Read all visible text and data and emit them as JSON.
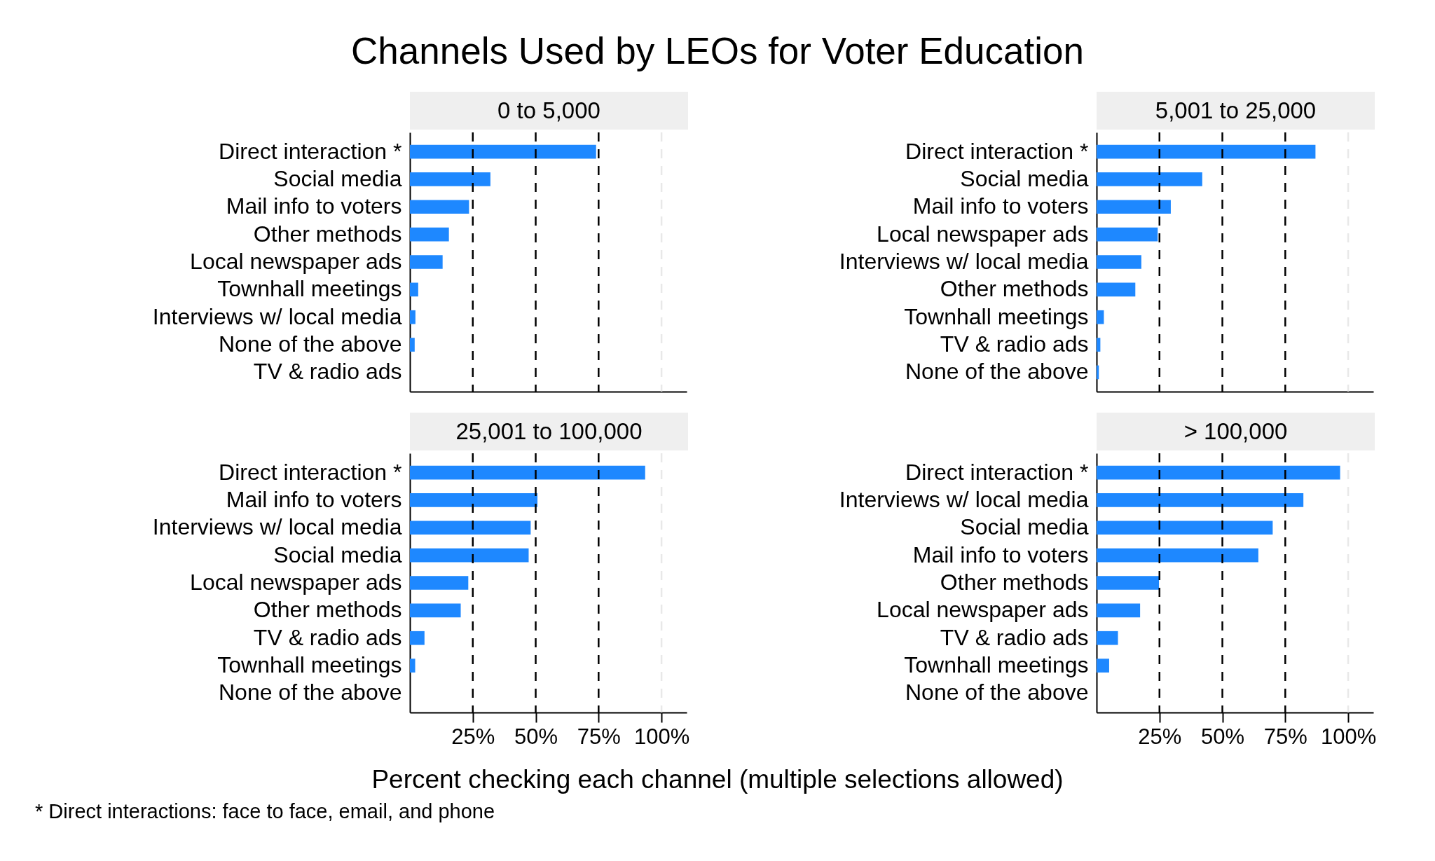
{
  "chart_data": [
    {
      "type": "other",
      "title": "Channels Used by LEOs for Voter Education",
      "annotations": [
        "Percent checking each channel (multiple selections allowed)",
        "* Direct interactions: face to face, email, and phone"
      ]
    },
    {
      "type": "bar",
      "orientation": "horizontal",
      "title": "0 to 5,000",
      "categories": [
        "Direct interaction *",
        "Social media",
        "Mail info to voters",
        "Other methods",
        "Local newspaper ads",
        "Townhall meetings",
        "Interviews w/ local media",
        "None of the above",
        "TV & radio ads"
      ],
      "values": [
        74,
        32,
        23.5,
        15.5,
        13,
        3.3,
        2.2,
        1.9,
        0
      ],
      "color": "#1e88ff",
      "xlim": [
        0,
        110
      ],
      "tick_labels": "y",
      "ref_lines": [
        {
          "axis": "x",
          "value": 25,
          "color": "#000000",
          "line_style": "dashed"
        },
        {
          "axis": "x",
          "value": 50,
          "color": "#000000",
          "line_style": "dashed"
        },
        {
          "axis": "x",
          "value": 75,
          "color": "#000000",
          "line_style": "dashed"
        },
        {
          "axis": "x",
          "value": 100,
          "color": "#e8e8e8",
          "line_style": "dashed"
        }
      ]
    },
    {
      "type": "bar",
      "orientation": "horizontal",
      "title": "5,001 to 25,000",
      "categories": [
        "Direct interaction *",
        "Social media",
        "Mail info to voters",
        "Local newspaper ads",
        "Interviews w/ local media",
        "Other methods",
        "Townhall meetings",
        "TV & radio ads",
        "None of the above"
      ],
      "values": [
        87,
        42,
        29.5,
        24.3,
        17.8,
        15.4,
        2.9,
        1.5,
        0.9
      ],
      "color": "#1e88ff",
      "xlim": [
        0,
        110
      ],
      "tick_labels": "y",
      "ref_lines": [
        {
          "axis": "x",
          "value": 25,
          "color": "#000000",
          "line_style": "dashed"
        },
        {
          "axis": "x",
          "value": 50,
          "color": "#000000",
          "line_style": "dashed"
        },
        {
          "axis": "x",
          "value": 75,
          "color": "#000000",
          "line_style": "dashed"
        },
        {
          "axis": "x",
          "value": 100,
          "color": "#e8e8e8",
          "line_style": "dashed"
        }
      ]
    },
    {
      "type": "bar",
      "orientation": "horizontal",
      "title": "25,001 to 100,000",
      "categories": [
        "Direct interaction *",
        "Mail info to voters",
        "Interviews w/ local media",
        "Social media",
        "Local newspaper ads",
        "Other methods",
        "TV & radio ads",
        "Townhall meetings",
        "None of the above"
      ],
      "values": [
        93.5,
        50.7,
        48,
        47.2,
        23.2,
        20.2,
        5.8,
        2.1,
        0
      ],
      "color": "#1e88ff",
      "xlim": [
        0,
        110
      ],
      "xticks": [
        {
          "value": 25,
          "label": "25%"
        },
        {
          "value": 50,
          "label": "50%"
        },
        {
          "value": 75,
          "label": "75%"
        },
        {
          "value": 100,
          "label": "100%"
        }
      ],
      "ref_lines": [
        {
          "axis": "x",
          "value": 25,
          "color": "#000000",
          "line_style": "dashed"
        },
        {
          "axis": "x",
          "value": 50,
          "color": "#000000",
          "line_style": "dashed"
        },
        {
          "axis": "x",
          "value": 75,
          "color": "#000000",
          "line_style": "dashed"
        },
        {
          "axis": "x",
          "value": 100,
          "color": "#e8e8e8",
          "line_style": "dashed"
        }
      ]
    },
    {
      "type": "bar",
      "orientation": "horizontal",
      "title": "> 100,000",
      "categories": [
        "Direct interaction *",
        "Interviews w/ local media",
        "Social media",
        "Mail info to voters",
        "Other methods",
        "Local newspaper ads",
        "TV & radio ads",
        "Townhall meetings",
        "None of the above"
      ],
      "values": [
        96.8,
        82.2,
        70,
        64.3,
        24.8,
        17.3,
        8.5,
        5,
        0
      ],
      "color": "#1e88ff",
      "xlim": [
        0,
        110
      ],
      "xticks": [
        {
          "value": 25,
          "label": "25%"
        },
        {
          "value": 50,
          "label": "50%"
        },
        {
          "value": 75,
          "label": "75%"
        },
        {
          "value": 100,
          "label": "100%"
        }
      ],
      "ref_lines": [
        {
          "axis": "x",
          "value": 25,
          "color": "#000000",
          "line_style": "dashed"
        },
        {
          "axis": "x",
          "value": 50,
          "color": "#000000",
          "line_style": "dashed"
        },
        {
          "axis": "x",
          "value": 75,
          "color": "#000000",
          "line_style": "dashed"
        },
        {
          "axis": "x",
          "value": 100,
          "color": "#e8e8e8",
          "line_style": "dashed"
        }
      ]
    }
  ]
}
